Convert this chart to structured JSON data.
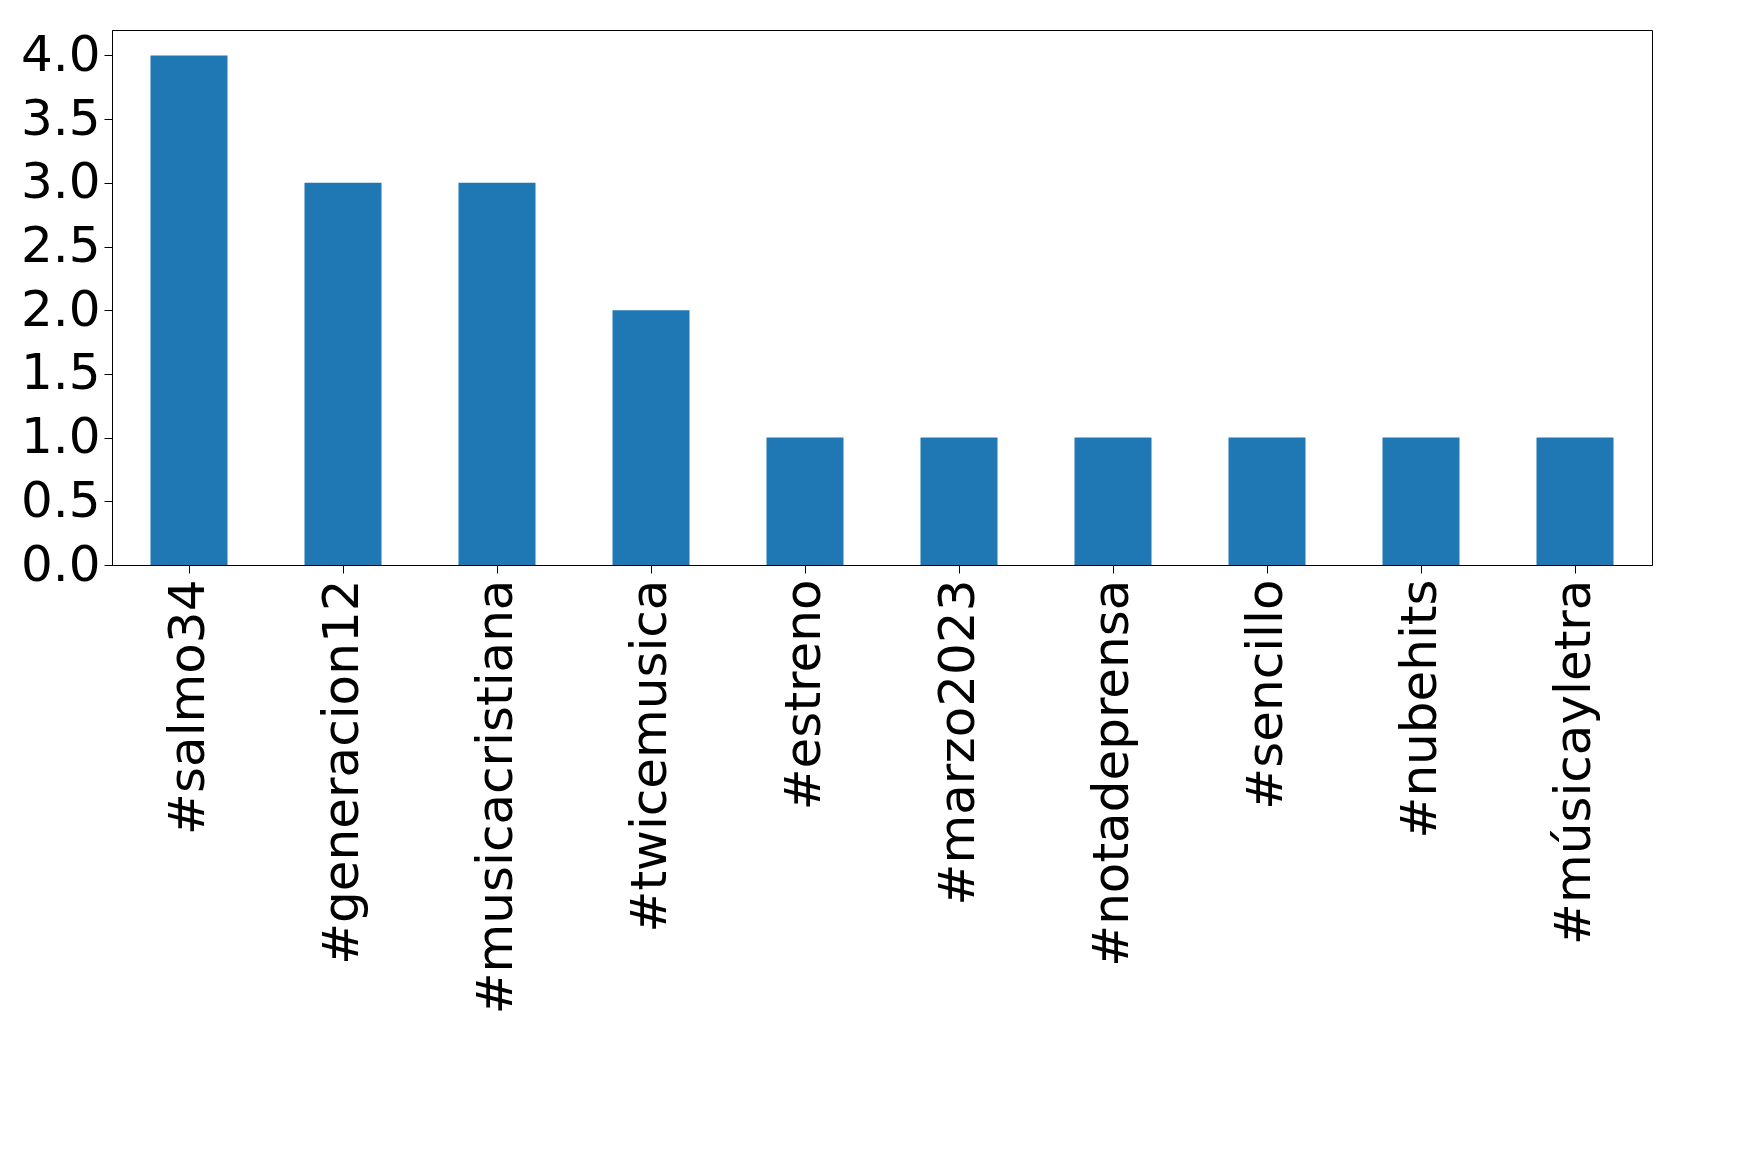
{
  "chart_data": {
    "type": "bar",
    "categories": [
      "#salmo34",
      "#generacion12",
      "#musicacristiana",
      "#twicemusica",
      "#estreno",
      "#marzo2023",
      "#notadeprensa",
      "#sencillo",
      "#nubehits",
      "#músicayletra"
    ],
    "values": [
      4,
      3,
      3,
      2,
      1,
      1,
      1,
      1,
      1,
      1
    ],
    "color": "#1f77b4",
    "ylim": [
      0,
      4.2
    ],
    "yticks": [
      {
        "value": 0,
        "label": "0.0"
      },
      {
        "value": 0.5,
        "label": "0.5"
      },
      {
        "value": 1,
        "label": "1.0"
      },
      {
        "value": 1.5,
        "label": "1.5"
      },
      {
        "value": 2,
        "label": "2.0"
      },
      {
        "value": 2.5,
        "label": "2.5"
      },
      {
        "value": 3,
        "label": "3.0"
      },
      {
        "value": 3.5,
        "label": "3.5"
      },
      {
        "value": 4,
        "label": "4.0"
      }
    ],
    "grid": false
  }
}
